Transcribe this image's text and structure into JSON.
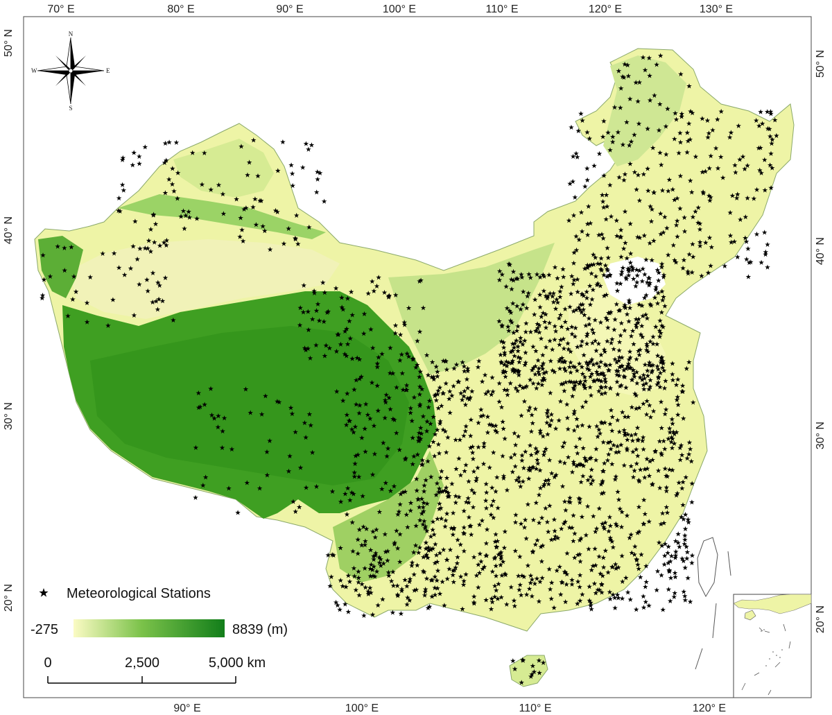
{
  "map": {
    "top_axis": [
      "70° E",
      "80° E",
      "90° E",
      "100° E",
      "110° E",
      "120° E",
      "130° E"
    ],
    "bottom_axis": [
      "90° E",
      "100° E",
      "110° E",
      "120° E"
    ],
    "left_axis": [
      "50° N",
      "40° N",
      "30° N",
      "20° N"
    ],
    "right_axis": [
      "50° N",
      "40° N",
      "30° N",
      "20° N"
    ]
  },
  "compass": {
    "north": "N",
    "south": "S",
    "east": "E",
    "west": "W"
  },
  "legend": {
    "stations_label": "Meteorological Stations",
    "elevation_min": "-275",
    "elevation_max": "8839 (m)",
    "elevation_min_color": "#fbfbc4",
    "elevation_max_color": "#127e1a"
  },
  "scale_bar": {
    "labels": [
      "0",
      "2,500",
      "5,000 km"
    ]
  },
  "colors": {
    "lowland": "#eef4a6",
    "upland": "#b7dc7d",
    "plateau": "#3e9e21",
    "basin": "#f1f2b8",
    "station": "#000000"
  }
}
